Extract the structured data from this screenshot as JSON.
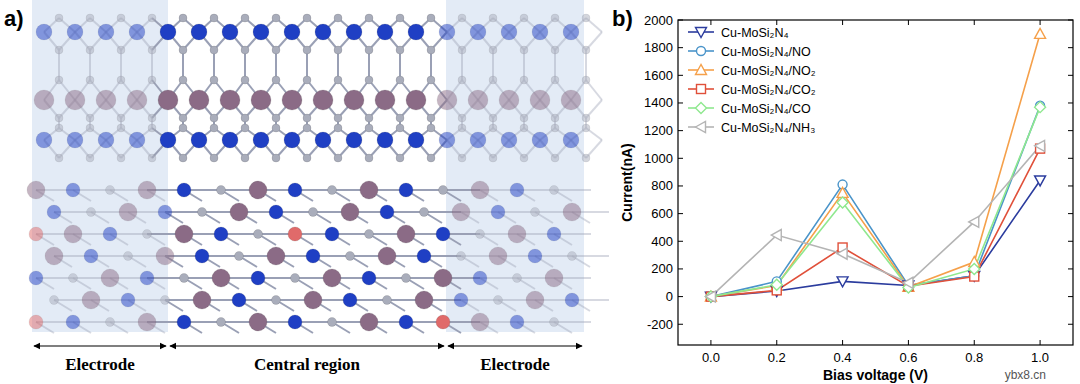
{
  "diagram": {
    "panel_label": "a)",
    "labels": [
      "Electrode",
      "Central region",
      "Electrode"
    ]
  },
  "chart_data": {
    "type": "line",
    "annotations": [
      "b)",
      "ybx8.cn"
    ],
    "x_label": "Bias voltage (V)",
    "y_label": "Current(nA)",
    "x": [
      0,
      0.2,
      0.4,
      0.6,
      0.8,
      1.0
    ],
    "xlim": [
      -0.1,
      1.1
    ],
    "xticks": [
      {
        "value": 0,
        "label": "0.0"
      },
      0.2,
      0.4,
      0.6,
      0.8,
      {
        "value": 1,
        "label": "1.0"
      }
    ],
    "ylim": [
      -350,
      2000
    ],
    "yticks": [
      -200,
      0,
      200,
      400,
      600,
      800,
      1000,
      1200,
      1400,
      1600,
      1800,
      2000
    ],
    "grid": false,
    "legend": "upper left",
    "series": [
      {
        "name": "Cu-MoSi₂N₄",
        "color": "#2b3c9e",
        "marker": "triangle-down",
        "values": [
          0,
          40,
          110,
          80,
          150,
          840
        ]
      },
      {
        "name": "Cu-MoSi₂N₄/NO",
        "color": "#4a94c9",
        "marker": "circle",
        "values": [
          0,
          110,
          810,
          80,
          150,
          1380
        ]
      },
      {
        "name": "Cu-MoSi₂N₄/NO₂",
        "color": "#f5a04a",
        "marker": "triangle-up",
        "values": [
          0,
          80,
          750,
          70,
          250,
          1900
        ]
      },
      {
        "name": "Cu-MoSi₂N₄/CO₂",
        "color": "#e0503a",
        "marker": "square",
        "values": [
          0,
          45,
          355,
          75,
          145,
          1070
        ]
      },
      {
        "name": "Cu-MoSi₂N₄/CO",
        "color": "#8fe88f",
        "marker": "diamond",
        "values": [
          0,
          85,
          680,
          65,
          200,
          1370
        ]
      },
      {
        "name": "Cu-MoSi₂N₄/NH₃",
        "color": "#b4b4b4",
        "marker": "triangle-left",
        "values": [
          0,
          445,
          310,
          100,
          540,
          1090
        ]
      }
    ]
  }
}
